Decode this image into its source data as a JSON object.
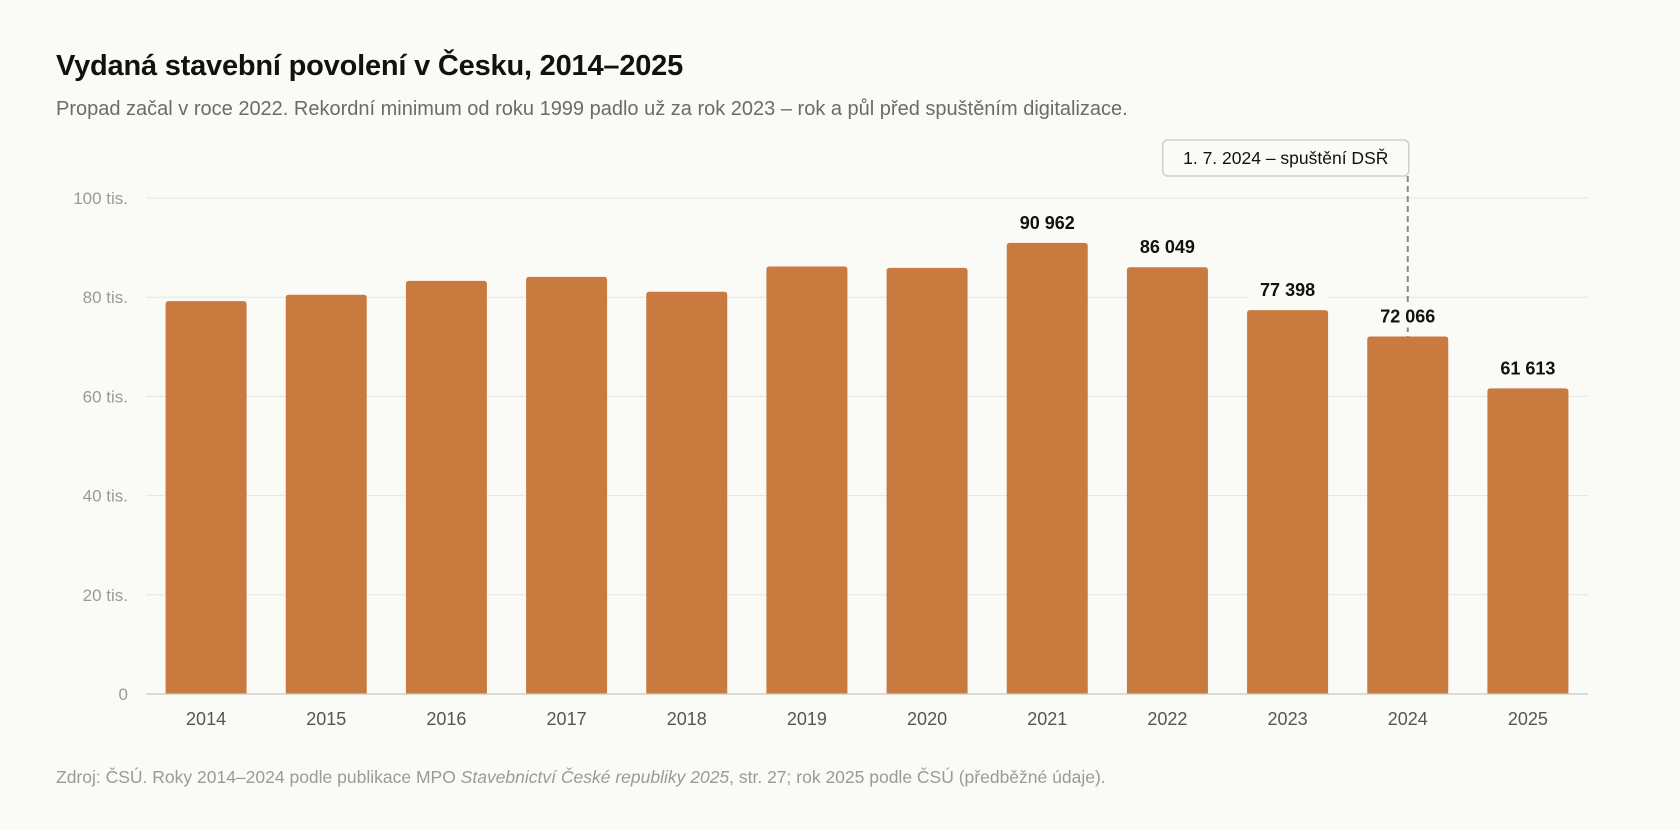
{
  "title": "Vydaná stavební povolení v Česku, 2014–2025",
  "subtitle": "Propad začal v roce 2022. Rekordní minimum od roku 1999 padlo už za rok 2023 – rok a půl před spuštěním digitalizace.",
  "source": {
    "prefix": "Zdroj: ČSÚ. Roky 2014–2024 podle publikace MPO ",
    "publication": "Stavebnictví České republiky 2025",
    "suffix": ", str. 27; rok 2025 podle ČSÚ (předběžné údaje)."
  },
  "colors": {
    "bar": "#c97a3f",
    "grid": "#e4e4e0",
    "axis": "#c8c8c4",
    "tick_label": "#9a9a9a",
    "category_label": "#555555",
    "annotation_line": "#888888"
  },
  "chart_data": {
    "type": "bar",
    "categories": [
      "2014",
      "2015",
      "2016",
      "2017",
      "2018",
      "2019",
      "2020",
      "2021",
      "2022",
      "2023",
      "2024",
      "2025"
    ],
    "values": [
      79200,
      80500,
      83300,
      84100,
      81100,
      86200,
      85900,
      90962,
      86049,
      77398,
      72066,
      61613
    ],
    "data_labels": [
      "",
      "",
      "",
      "",
      "",
      "",
      "",
      "90 962",
      "86 049",
      "77 398",
      "72 066",
      "61 613"
    ],
    "ylim": [
      0,
      100000
    ],
    "y_ticks": [
      {
        "value": 0,
        "label": "0"
      },
      {
        "value": 20000,
        "label": "20 tis."
      },
      {
        "value": 40000,
        "label": "40 tis."
      },
      {
        "value": 60000,
        "label": "60 tis."
      },
      {
        "value": 80000,
        "label": "80 tis."
      },
      {
        "value": 100000,
        "label": "100 tis."
      }
    ],
    "grid": true,
    "annotation": {
      "category": "2024",
      "label": "1. 7. 2024 – spuštění DSŘ"
    }
  }
}
